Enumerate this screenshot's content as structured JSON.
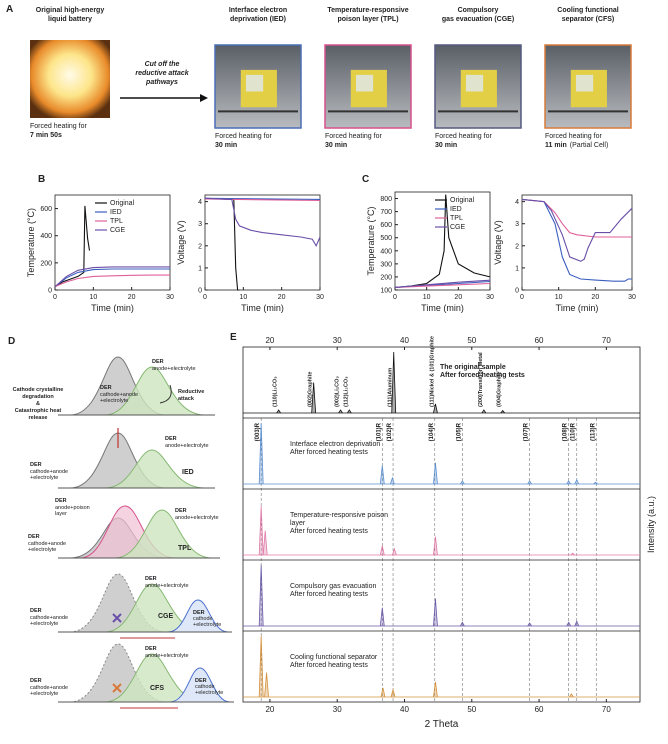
{
  "panel_a": {
    "label": "A",
    "arrow_text": [
      "Cut off the",
      "reductive attack",
      "pathways"
    ],
    "items": [
      {
        "title": [
          "Original high-energy",
          "liquid battery"
        ],
        "caption": [
          "Forced heating for",
          "7 min 50s"
        ],
        "color": "#f0a030"
      },
      {
        "title": [
          "Interface electron",
          "deprivation (IED)"
        ],
        "caption": [
          "Forced heating for",
          "30 min"
        ],
        "color": "#4a6fb5"
      },
      {
        "title": [
          "Temperature-responsive",
          "poison layer (TPL)"
        ],
        "caption": [
          "Forced heating for",
          "30 min"
        ],
        "color": "#d6508a"
      },
      {
        "title": [
          "Compulsory",
          "gas evacuation (CGE)"
        ],
        "caption": [
          "Forced heating for",
          "30 min"
        ],
        "color": "#555a80"
      },
      {
        "title": [
          "Cooling functional",
          "separator (CFS)"
        ],
        "caption": [
          "Forced heating for",
          "11 min",
          "(Partial Cell)"
        ],
        "color": "#d87a3a"
      }
    ]
  },
  "panel_b": {
    "label": "B",
    "charts": [
      {
        "type": "line",
        "xlabel": "Time (min)",
        "ylabel": "Temperature (°C)",
        "xlim": [
          0,
          30
        ],
        "ylim": [
          0,
          700
        ],
        "xticks": [
          0,
          10,
          20,
          30
        ],
        "yticks": [
          0,
          200,
          400,
          600
        ],
        "legend": true,
        "series": [
          {
            "name": "Original",
            "color": "#111111",
            "x": [
              0,
              2,
              4,
              6,
              7.5,
              7.8,
              8.5,
              9
            ],
            "values": [
              25,
              60,
              80,
              100,
              130,
              620,
              380,
              290
            ]
          },
          {
            "name": "IED",
            "color": "#3b5fc0",
            "x": [
              0,
              3,
              6,
              10,
              15,
              20,
              25,
              30
            ],
            "values": [
              25,
              90,
              130,
              150,
              155,
              155,
              155,
              155
            ]
          },
          {
            "name": "TPL",
            "color": "#e0609a",
            "x": [
              0,
              3,
              6,
              10,
              15,
              20,
              25,
              30
            ],
            "values": [
              25,
              60,
              85,
              100,
              105,
              108,
              110,
              110
            ]
          },
          {
            "name": "CGE",
            "color": "#6a4fa8",
            "x": [
              0,
              3,
              6,
              10,
              15,
              20,
              25,
              30
            ],
            "values": [
              25,
              100,
              145,
              165,
              170,
              170,
              170,
              170
            ]
          }
        ]
      },
      {
        "type": "line",
        "xlabel": "Time (min)",
        "ylabel": "Voltage (V)",
        "xlim": [
          0,
          30
        ],
        "ylim": [
          0,
          4.3
        ],
        "xticks": [
          0,
          10,
          20,
          30
        ],
        "yticks": [
          0,
          1,
          2,
          3,
          4
        ],
        "legend": false,
        "series": [
          {
            "name": "Original",
            "color": "#111111",
            "x": [
              0,
              7.5,
              8,
              8.5,
              9
            ],
            "values": [
              4.15,
              4.1,
              1.0,
              0,
              0
            ]
          },
          {
            "name": "IED",
            "color": "#3b5fc0",
            "x": [
              0,
              30
            ],
            "values": [
              4.15,
              4.1
            ]
          },
          {
            "name": "TPL",
            "color": "#e0609a",
            "x": [
              0,
              30
            ],
            "values": [
              4.12,
              4.05
            ]
          },
          {
            "name": "CGE",
            "color": "#6a4fa8",
            "x": [
              0,
              7,
              8,
              9,
              12,
              15,
              20,
              25,
              28,
              29,
              30
            ],
            "values": [
              4.15,
              4.1,
              3.2,
              2.9,
              2.7,
              2.6,
              2.5,
              2.4,
              2.3,
              2.0,
              2.4
            ]
          }
        ]
      }
    ]
  },
  "panel_c": {
    "label": "C",
    "charts": [
      {
        "type": "line",
        "xlabel": "Time (min)",
        "ylabel": "Temperature (°C)",
        "xlim": [
          0,
          30
        ],
        "ylim": [
          100,
          850
        ],
        "xticks": [
          0,
          10,
          20,
          30
        ],
        "yticks": [
          100,
          200,
          300,
          400,
          500,
          600,
          700,
          800
        ],
        "legend": true,
        "series": [
          {
            "name": "Original",
            "color": "#111111",
            "x": [
              0,
              5,
              10,
              14,
              15.5,
              16,
              17,
              20,
              25,
              30
            ],
            "values": [
              120,
              130,
              150,
              220,
              400,
              830,
              500,
              300,
              230,
              200
            ]
          },
          {
            "name": "IED",
            "color": "#3b5fc0",
            "x": [
              0,
              10,
              20,
              30
            ],
            "values": [
              120,
              135,
              150,
              165
            ]
          },
          {
            "name": "TPL",
            "color": "#e0609a",
            "x": [
              0,
              10,
              20,
              30
            ],
            "values": [
              120,
              130,
              140,
              150
            ]
          },
          {
            "name": "CGE",
            "color": "#6a4fa8",
            "x": [
              0,
              10,
              20,
              30
            ],
            "values": [
              120,
              140,
              160,
              175
            ]
          }
        ]
      },
      {
        "type": "line",
        "xlabel": "Time (min)",
        "ylabel": "Voltage (V)",
        "xlim": [
          0,
          30
        ],
        "ylim": [
          0,
          4.3
        ],
        "xticks": [
          0,
          10,
          20,
          30
        ],
        "yticks": [
          0,
          1,
          2,
          3,
          4
        ],
        "legend": false,
        "series": [
          {
            "name": "IED",
            "color": "#3b5fc0",
            "x": [
              0,
              6,
              9,
              11,
              13,
              16,
              20,
              25,
              28,
              29,
              30
            ],
            "values": [
              4.1,
              4.0,
              3.0,
              1.5,
              0.7,
              0.5,
              0.45,
              0.4,
              0.4,
              0.5,
              0.5
            ]
          },
          {
            "name": "TPL",
            "color": "#e0609a",
            "x": [
              0,
              6,
              9,
              11,
              13,
              15,
              20,
              25,
              30
            ],
            "values": [
              4.1,
              4.0,
              3.5,
              3.0,
              2.6,
              2.5,
              2.4,
              2.4,
              2.4
            ]
          },
          {
            "name": "CGE",
            "color": "#6a4fa8",
            "x": [
              0,
              6,
              8,
              11,
              13,
              16,
              17,
              18,
              20,
              24,
              27,
              30
            ],
            "values": [
              4.1,
              4.0,
              3.6,
              2.5,
              1.5,
              1.3,
              1.4,
              1.9,
              2.6,
              2.6,
              3.2,
              3.7
            ]
          }
        ]
      }
    ]
  },
  "panel_d": {
    "label": "D",
    "diagrams": [
      [
        "DER",
        "cathode+anode",
        "+electrolyte",
        "DER",
        "anode+electrolyte",
        "Cathode crystalline",
        "degradation",
        "&",
        "Catastrophic heat",
        "release",
        "Reductive",
        "attack"
      ],
      [
        "DER",
        "anode+electrolyte",
        "DER",
        "cathode+anode",
        "+electrolyte",
        "IED"
      ],
      [
        "DER",
        "anode+poison",
        "layer",
        "DER",
        "anode+electrolyte",
        "DER",
        "cathode+anode",
        "+electrolyte",
        "TPL"
      ],
      [
        "DER",
        "anode+electrolyte",
        "DER",
        "cathode+anode",
        "+electrolyte",
        "DER",
        "cathode",
        "+electrolyte",
        "CGE"
      ],
      [
        "DER",
        "anode+electrolyte",
        "DER",
        "cathode+anode",
        "+electrolyte",
        "DER",
        "cathode",
        "+electrolyte",
        "CFS"
      ]
    ]
  },
  "panel_e": {
    "label": "E",
    "type": "xrd",
    "xlabel": "2 Theta",
    "ylabel": "Intensity (a.u.)",
    "xlim": [
      16,
      75
    ],
    "xticks": [
      20,
      30,
      40,
      50,
      60,
      70
    ],
    "reference_lines": [
      {
        "x": 18.7,
        "label": "(003)R"
      },
      {
        "x": 36.7,
        "label": "(101)R"
      },
      {
        "x": 38.3,
        "label": "(102)R"
      },
      {
        "x": 44.5,
        "label": "(104)R"
      },
      {
        "x": 48.6,
        "label": "(105)R"
      },
      {
        "x": 58.6,
        "label": "(107)R"
      },
      {
        "x": 64.4,
        "label": "(108)R"
      },
      {
        "x": 65.6,
        "label": "(110)R"
      },
      {
        "x": 68.5,
        "label": "(113)R"
      }
    ],
    "traces": [
      {
        "name": [
          "The original sample",
          "After forced heating tests"
        ],
        "color": "#111111",
        "peak_labels": [
          {
            "x": 21.3,
            "label": "(110)Li₂CO₃"
          },
          {
            "x": 26.5,
            "label": "(002)Graphite"
          },
          {
            "x": 30.5,
            "label": "(002)Li₂CO₃"
          },
          {
            "x": 31.8,
            "label": "(112)Li₂CO₃"
          },
          {
            "x": 38.4,
            "label": "(111)Aluminum"
          },
          {
            "x": 44.6,
            "label": "(111)Nickel & (101)Graphite"
          },
          {
            "x": 51.8,
            "label": "(200)Transition Metal"
          },
          {
            "x": 54.6,
            "label": "(004)Graphite"
          }
        ],
        "peaks": [
          {
            "x": 21.3,
            "h": 0.05
          },
          {
            "x": 26.5,
            "h": 0.5
          },
          {
            "x": 30.5,
            "h": 0.05
          },
          {
            "x": 31.8,
            "h": 0.05
          },
          {
            "x": 38.4,
            "h": 1.0
          },
          {
            "x": 44.6,
            "h": 0.15
          },
          {
            "x": 51.8,
            "h": 0.05
          },
          {
            "x": 54.6,
            "h": 0.04
          }
        ]
      },
      {
        "name": [
          "Interface electron deprivation",
          "After forced heating tests"
        ],
        "color": "#5b8fd0",
        "peaks": [
          {
            "x": 18.7,
            "h": 1.0
          },
          {
            "x": 36.7,
            "h": 0.3
          },
          {
            "x": 38.2,
            "h": 0.1
          },
          {
            "x": 44.6,
            "h": 0.35
          },
          {
            "x": 48.6,
            "h": 0.05
          },
          {
            "x": 58.6,
            "h": 0.05
          },
          {
            "x": 64.4,
            "h": 0.05
          },
          {
            "x": 65.6,
            "h": 0.07
          },
          {
            "x": 68.4,
            "h": 0.03
          }
        ]
      },
      {
        "name": [
          "Temperature-responsive poison",
          "layer",
          "After forced heating tests"
        ],
        "color": "#e07aa6",
        "peaks": [
          {
            "x": 18.7,
            "h": 0.8
          },
          {
            "x": 19.3,
            "h": 0.4
          },
          {
            "x": 36.7,
            "h": 0.15
          },
          {
            "x": 38.5,
            "h": 0.1
          },
          {
            "x": 44.6,
            "h": 0.3
          },
          {
            "x": 65,
            "h": 0.03
          }
        ]
      },
      {
        "name": [
          "Compulsory gas evacuation",
          "After forced heating tests"
        ],
        "color": "#6a5aa8",
        "peaks": [
          {
            "x": 18.7,
            "h": 1.0
          },
          {
            "x": 36.7,
            "h": 0.3
          },
          {
            "x": 44.6,
            "h": 0.45
          },
          {
            "x": 48.6,
            "h": 0.06
          },
          {
            "x": 58.6,
            "h": 0.05
          },
          {
            "x": 64.4,
            "h": 0.06
          },
          {
            "x": 65.6,
            "h": 0.08
          }
        ]
      },
      {
        "name": [
          "Cooling functional separator",
          "After forced heating tests"
        ],
        "color": "#d4903a",
        "peaks": [
          {
            "x": 18.7,
            "h": 1.0
          },
          {
            "x": 19.5,
            "h": 0.4
          },
          {
            "x": 36.8,
            "h": 0.15
          },
          {
            "x": 38.3,
            "h": 0.12
          },
          {
            "x": 44.6,
            "h": 0.25
          },
          {
            "x": 64.8,
            "h": 0.05
          }
        ]
      }
    ]
  }
}
